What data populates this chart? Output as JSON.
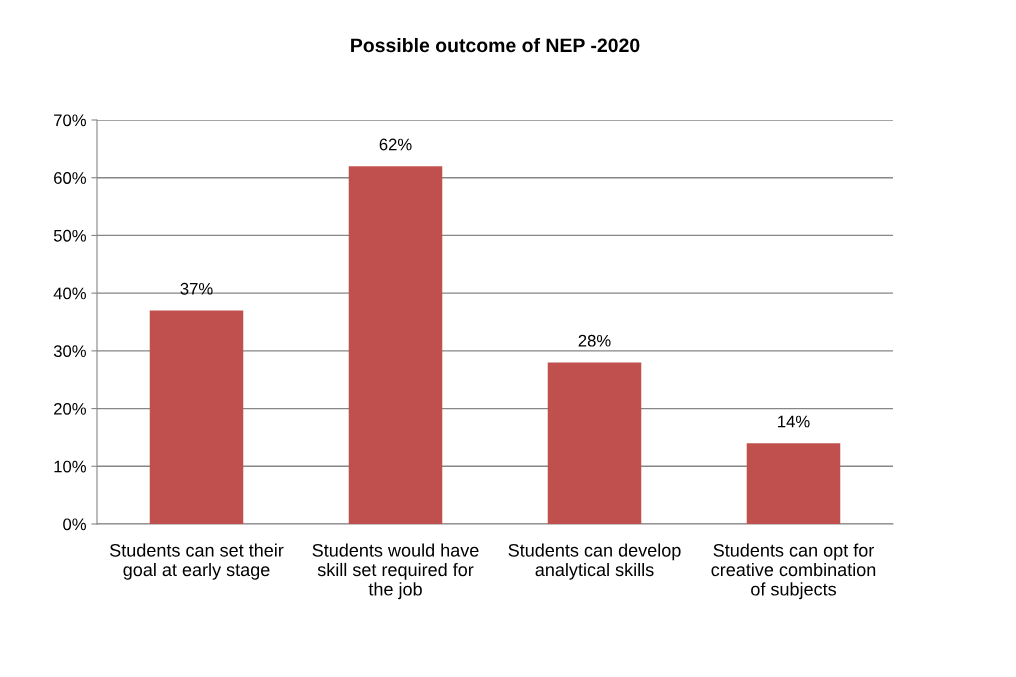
{
  "chart_data": {
    "type": "bar",
    "title": "Possible outcome of NEP -2020",
    "categories": [
      "Students can set their goal at early stage",
      "Students would have skill set required for the job",
      "Students can develop analytical skills",
      "Students can opt for creative combination of subjects"
    ],
    "values": [
      37,
      62,
      28,
      14
    ],
    "value_labels": [
      "37%",
      "62%",
      "28%",
      "14%"
    ],
    "color": "#c0504d",
    "ylim": [
      0,
      70
    ],
    "yticks": [
      {
        "value": 0,
        "label": "0%"
      },
      {
        "value": 10,
        "label": "10%"
      },
      {
        "value": 20,
        "label": "20%"
      },
      {
        "value": 30,
        "label": "30%"
      },
      {
        "value": 40,
        "label": "40%"
      },
      {
        "value": 50,
        "label": "50%"
      },
      {
        "value": 60,
        "label": "60%"
      },
      {
        "value": 70,
        "label": "70%"
      }
    ],
    "grid": "y",
    "legend": false
  }
}
